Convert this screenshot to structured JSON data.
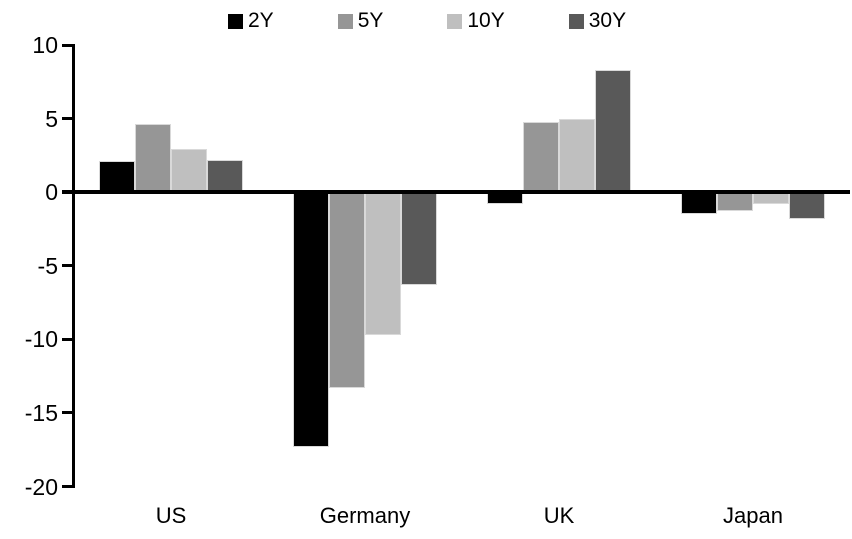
{
  "chart_data": {
    "type": "bar",
    "title": "",
    "xlabel": "",
    "ylabel": "",
    "categories": [
      "US",
      "Germany",
      "UK",
      "Japan"
    ],
    "series": [
      {
        "name": "2Y",
        "color": "#000000",
        "values": [
          2.1,
          -17.3,
          -0.8,
          -1.5
        ]
      },
      {
        "name": "5Y",
        "color": "#969696",
        "values": [
          4.6,
          -13.3,
          4.8,
          -1.3
        ]
      },
      {
        "name": "10Y",
        "color": "#bfbfbf",
        "values": [
          2.9,
          -9.7,
          5.0,
          -0.8
        ]
      },
      {
        "name": "30Y",
        "color": "#595959",
        "values": [
          2.2,
          -6.3,
          8.3,
          -1.8
        ]
      }
    ],
    "ylim": [
      -20,
      10
    ],
    "yticks": [
      10,
      5,
      0,
      -5,
      -10,
      -15,
      -20
    ],
    "grid": false,
    "legend_position": "top",
    "axis_color": "#000000",
    "bar_edge_color": "#d9d9d9",
    "background_color": "#ffffff"
  }
}
